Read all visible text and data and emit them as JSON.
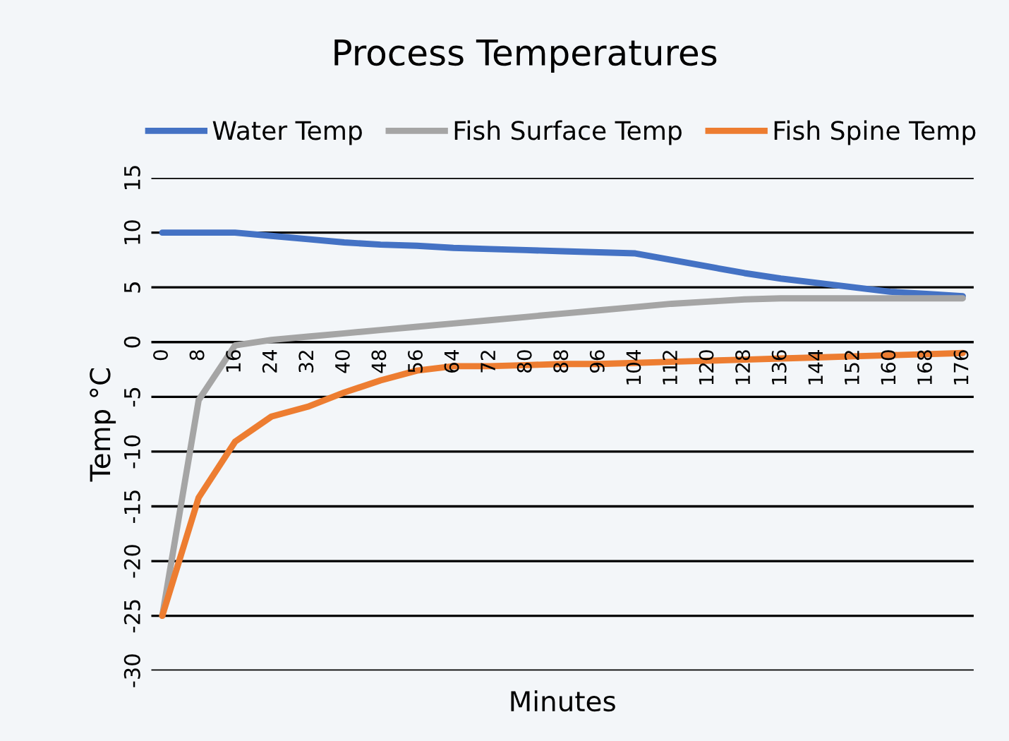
{
  "chart_data": {
    "type": "line",
    "title": "Process Temperatures",
    "xlabel": "Minutes",
    "ylabel": "Temp °C",
    "categories": [
      "0",
      "8",
      "16",
      "24",
      "32",
      "40",
      "48",
      "56",
      "64",
      "72",
      "80",
      "88",
      "96",
      "104",
      "112",
      "120",
      "128",
      "136",
      "144",
      "152",
      "160",
      "168",
      "176"
    ],
    "series": [
      {
        "name": "Water Temp",
        "color": "#4472c4",
        "values": [
          10,
          10,
          10,
          9.7,
          9.4,
          9.1,
          8.9,
          8.8,
          8.6,
          8.5,
          8.4,
          8.3,
          8.2,
          8.1,
          7.5,
          6.9,
          6.3,
          5.8,
          5.4,
          5.0,
          4.6,
          4.4,
          4.2
        ]
      },
      {
        "name": "Fish Surface Temp",
        "color": "#a5a5a5",
        "values": [
          -25,
          -5.3,
          -0.3,
          0.2,
          0.5,
          0.8,
          1.1,
          1.4,
          1.7,
          2.0,
          2.3,
          2.6,
          2.9,
          3.2,
          3.5,
          3.7,
          3.9,
          4.0,
          4.0,
          4.0,
          4.0,
          4.0,
          4.0
        ]
      },
      {
        "name": "Fish Spine Temp",
        "color": "#ed7d31",
        "values": [
          -25,
          -14.2,
          -9.1,
          -6.8,
          -5.9,
          -4.6,
          -3.5,
          -2.6,
          -2.2,
          -2.2,
          -2.1,
          -2.0,
          -2.0,
          -1.9,
          -1.8,
          -1.7,
          -1.6,
          -1.5,
          -1.4,
          -1.3,
          -1.2,
          -1.1,
          -1.0
        ]
      }
    ],
    "ylim": [
      -30,
      15
    ],
    "yticks": [
      -30,
      -25,
      -20,
      -15,
      -10,
      -5,
      0,
      5,
      10,
      15
    ],
    "grid": "y",
    "legend": "top",
    "marker": "none",
    "line_style": "solid"
  }
}
